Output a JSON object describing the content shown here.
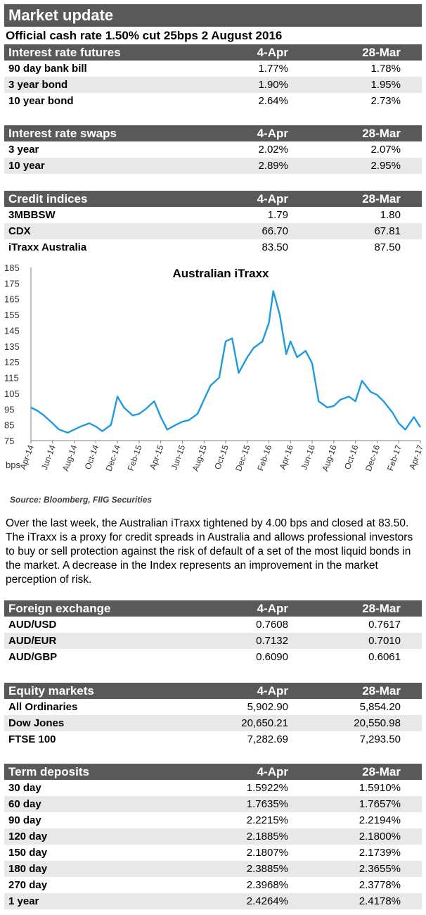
{
  "header": {
    "title": "Market update",
    "subtitle": "Official cash rate 1.50% cut 25bps 2 August 2016"
  },
  "tables": {
    "futures": {
      "title": "Interest rate futures",
      "col1": "4-Apr",
      "col2": "28-Mar",
      "rows": [
        {
          "label": "90 day bank bill",
          "v1": "1.77%",
          "v2": "1.78%"
        },
        {
          "label": "3 year bond",
          "v1": "1.90%",
          "v2": "1.95%"
        },
        {
          "label": "10 year bond",
          "v1": "2.64%",
          "v2": "2.73%"
        }
      ]
    },
    "swaps": {
      "title": "Interest rate swaps",
      "col1": "4-Apr",
      "col2": "28-Mar",
      "rows": [
        {
          "label": "3 year",
          "v1": "2.02%",
          "v2": "2.07%"
        },
        {
          "label": "10 year",
          "v1": "2.89%",
          "v2": "2.95%"
        }
      ]
    },
    "credit": {
      "title": "Credit indices",
      "col1": "4-Apr",
      "col2": "28-Mar",
      "rows": [
        {
          "label": "3MBBSW",
          "v1": "1.79",
          "v2": "1.80"
        },
        {
          "label": "CDX",
          "v1": "66.70",
          "v2": "67.81"
        },
        {
          "label": "iTraxx Australia",
          "v1": "83.50",
          "v2": "87.50"
        }
      ]
    },
    "fx": {
      "title": "Foreign exchange",
      "col1": "4-Apr",
      "col2": "28-Mar",
      "rows": [
        {
          "label": "AUD/USD",
          "v1": "0.7608",
          "v2": "0.7617"
        },
        {
          "label": "AUD/EUR",
          "v1": "0.7132",
          "v2": "0.7010"
        },
        {
          "label": "AUD/GBP",
          "v1": "0.6090",
          "v2": "0.6061"
        }
      ]
    },
    "equity": {
      "title": "Equity markets",
      "col1": "4-Apr",
      "col2": "28-Mar",
      "rows": [
        {
          "label": "All Ordinaries",
          "v1": "5,902.90",
          "v2": "5,854.20"
        },
        {
          "label": "Dow Jones",
          "v1": "20,650.21",
          "v2": "20,550.98"
        },
        {
          "label": "FTSE 100",
          "v1": "7,282.69",
          "v2": "7,293.50"
        }
      ]
    },
    "deposits": {
      "title": "Term deposits",
      "col1": "4-Apr",
      "col2": "28-Mar",
      "rows": [
        {
          "label": "30 day",
          "v1": "1.5922%",
          "v2": "1.5910%"
        },
        {
          "label": "60 day",
          "v1": "1.7635%",
          "v2": "1.7657%"
        },
        {
          "label": "90 day",
          "v1": "2.2215%",
          "v2": "2.2194%"
        },
        {
          "label": "120 day",
          "v1": "2.1885%",
          "v2": "2.1800%"
        },
        {
          "label": "150 day",
          "v1": "2.1807%",
          "v2": "2.1739%"
        },
        {
          "label": "180 day",
          "v1": "2.3885%",
          "v2": "2.3655%"
        },
        {
          "label": "270 day",
          "v1": "2.3968%",
          "v2": "2.3778%"
        },
        {
          "label": "1 year",
          "v1": "2.4264%",
          "v2": "2.4178%"
        }
      ]
    }
  },
  "chart_data": {
    "type": "line",
    "title": "Australian iTraxx",
    "ylabel": "bps",
    "xlabel": "",
    "ylim": [
      75,
      185
    ],
    "yticks": [
      185,
      175,
      165,
      155,
      145,
      135,
      125,
      115,
      105,
      95,
      85,
      75
    ],
    "xticks": [
      "Apr-14",
      "Jun-14",
      "Aug-14",
      "Oct-14",
      "Dec-14",
      "Feb-15",
      "Apr-15",
      "Jun-15",
      "Aug-15",
      "Oct-15",
      "Dec-15",
      "Feb-16",
      "Apr-16",
      "Jun-16",
      "Aug-16",
      "Oct-16",
      "Dec-16",
      "Feb-17",
      "Apr-17"
    ],
    "grid": false,
    "line_color": "#1e9be0",
    "x": [
      0,
      0.3,
      0.6,
      1,
      1.3,
      1.7,
      2,
      2.3,
      2.7,
      3,
      3.3,
      3.7,
      4,
      4.3,
      4.7,
      5,
      5.3,
      5.7,
      6,
      6.3,
      6.7,
      7,
      7.3,
      7.7,
      8,
      8.3,
      8.7,
      9,
      9.3,
      9.6,
      10,
      10.3,
      10.7,
      11,
      11.2,
      11.5,
      11.8,
      12,
      12.3,
      12.7,
      13,
      13.3,
      13.7,
      14,
      14.3,
      14.7,
      15,
      15.3,
      15.7,
      16,
      16.3,
      16.7,
      17,
      17.3,
      17.7,
      18
    ],
    "y": [
      96,
      94,
      91,
      86,
      82,
      80,
      82,
      84,
      86,
      84,
      81,
      85,
      103,
      96,
      91,
      92,
      95,
      100,
      90,
      82,
      85,
      87,
      88,
      92,
      101,
      110,
      115,
      138,
      140,
      118,
      128,
      134,
      138,
      150,
      170,
      155,
      130,
      138,
      128,
      132,
      124,
      100,
      96,
      97,
      101,
      103,
      100,
      113,
      106,
      104,
      100,
      93,
      86,
      82,
      90,
      83.5
    ]
  },
  "source": "Source: Bloomberg, FIIG Securities",
  "commentary": "Over the last week, the Australian iTraxx tightened by 4.00 bps and closed at 83.50. The iTraxx is a proxy for credit spreads in Australia and allows professional investors to buy or sell protection against the risk of default of a set of the most liquid bonds in the market. A decrease in the Index represents an improvement in the market perception of risk."
}
